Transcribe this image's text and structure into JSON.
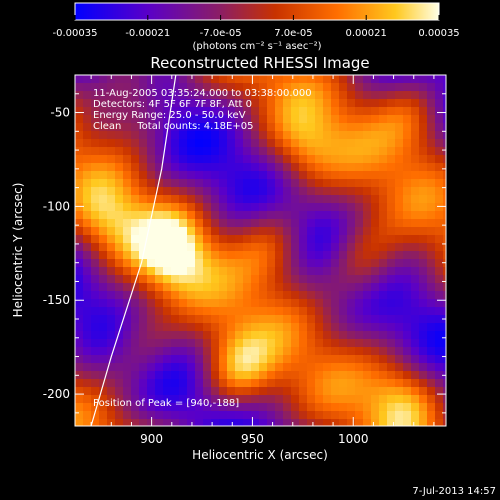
{
  "chart_data": {
    "type": "heatmap",
    "title": "Reconstructed RHESSI Image",
    "xlabel": "Heliocentric X (arcsec)",
    "ylabel": "Heliocentric Y (arcsec)",
    "xlim": [
      862,
      1046
    ],
    "ylim": [
      -217,
      -30
    ],
    "xticks": [
      900,
      950,
      1000
    ],
    "yticks": [
      -50,
      -100,
      -150,
      -200
    ],
    "colorbar": {
      "range": [
        -0.00035,
        0.00035
      ],
      "ticks": [
        "-0.00035",
        "-0.00021",
        "-7.0e-05",
        "7.0e-05",
        "0.00021",
        "0.00035"
      ],
      "units": "(photons cm⁻² s⁻¹ asec⁻²)",
      "colormap": [
        "#0000ff",
        "#5a00c8",
        "#8c1e64",
        "#c83200",
        "#ff6e00",
        "#ffc81e",
        "#ffffe6"
      ]
    },
    "annotations": [
      "11-Aug-2005 03:35:24.000 to 03:38:00.000",
      "Detectors: 4F 5F 6F 7F 8F, Att 0",
      "Energy Range: 25.0 - 50.0 keV",
      "Clean     Total counts: 4.18E+05",
      "Position of Peak = [940,-188]"
    ],
    "peak": {
      "x": 940,
      "y": -188
    },
    "limb_curve": [
      {
        "x": 912,
        "y": -30
      },
      {
        "x": 905,
        "y": -80
      },
      {
        "x": 895,
        "y": -130
      },
      {
        "x": 880,
        "y": -180
      },
      {
        "x": 870,
        "y": -217
      }
    ],
    "bright_blobs": [
      {
        "x": 890,
        "y": -40,
        "amp": 0.8
      },
      {
        "x": 878,
        "y": -110,
        "amp": 0.6
      },
      {
        "x": 910,
        "y": -125,
        "amp": 1.0
      },
      {
        "x": 895,
        "y": -170,
        "amp": 0.55
      },
      {
        "x": 942,
        "y": -188,
        "amp": 1.0
      },
      {
        "x": 960,
        "y": -120,
        "amp": 0.75
      },
      {
        "x": 975,
        "y": -70,
        "amp": 0.7
      },
      {
        "x": 1005,
        "y": -130,
        "amp": 0.8
      },
      {
        "x": 1030,
        "y": -50,
        "amp": 0.65
      },
      {
        "x": 1025,
        "y": -200,
        "amp": 0.7
      }
    ]
  },
  "footer": {
    "timestamp": "7-Jul-2013 14:57"
  }
}
